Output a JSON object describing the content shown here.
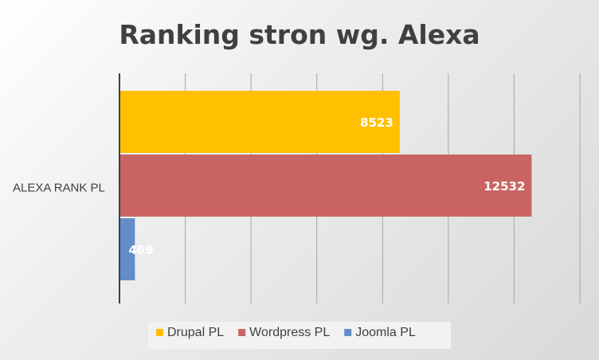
{
  "chart_data": {
    "type": "bar",
    "orientation": "horizontal",
    "title": "Ranking stron wg. Alexa",
    "categories": [
      "ALEXA RANK PL"
    ],
    "series": [
      {
        "name": "Drupal PL",
        "values": [
          8523
        ],
        "color": "#FFC000"
      },
      {
        "name": "Wordpress PL",
        "values": [
          12532
        ],
        "color": "#C96462"
      },
      {
        "name": "Joomla PL",
        "values": [
          469
        ],
        "color": "#628DC8"
      }
    ],
    "xlim": [
      0,
      14000
    ],
    "grid": true,
    "legend_position": "bottom",
    "data_labels": true
  }
}
